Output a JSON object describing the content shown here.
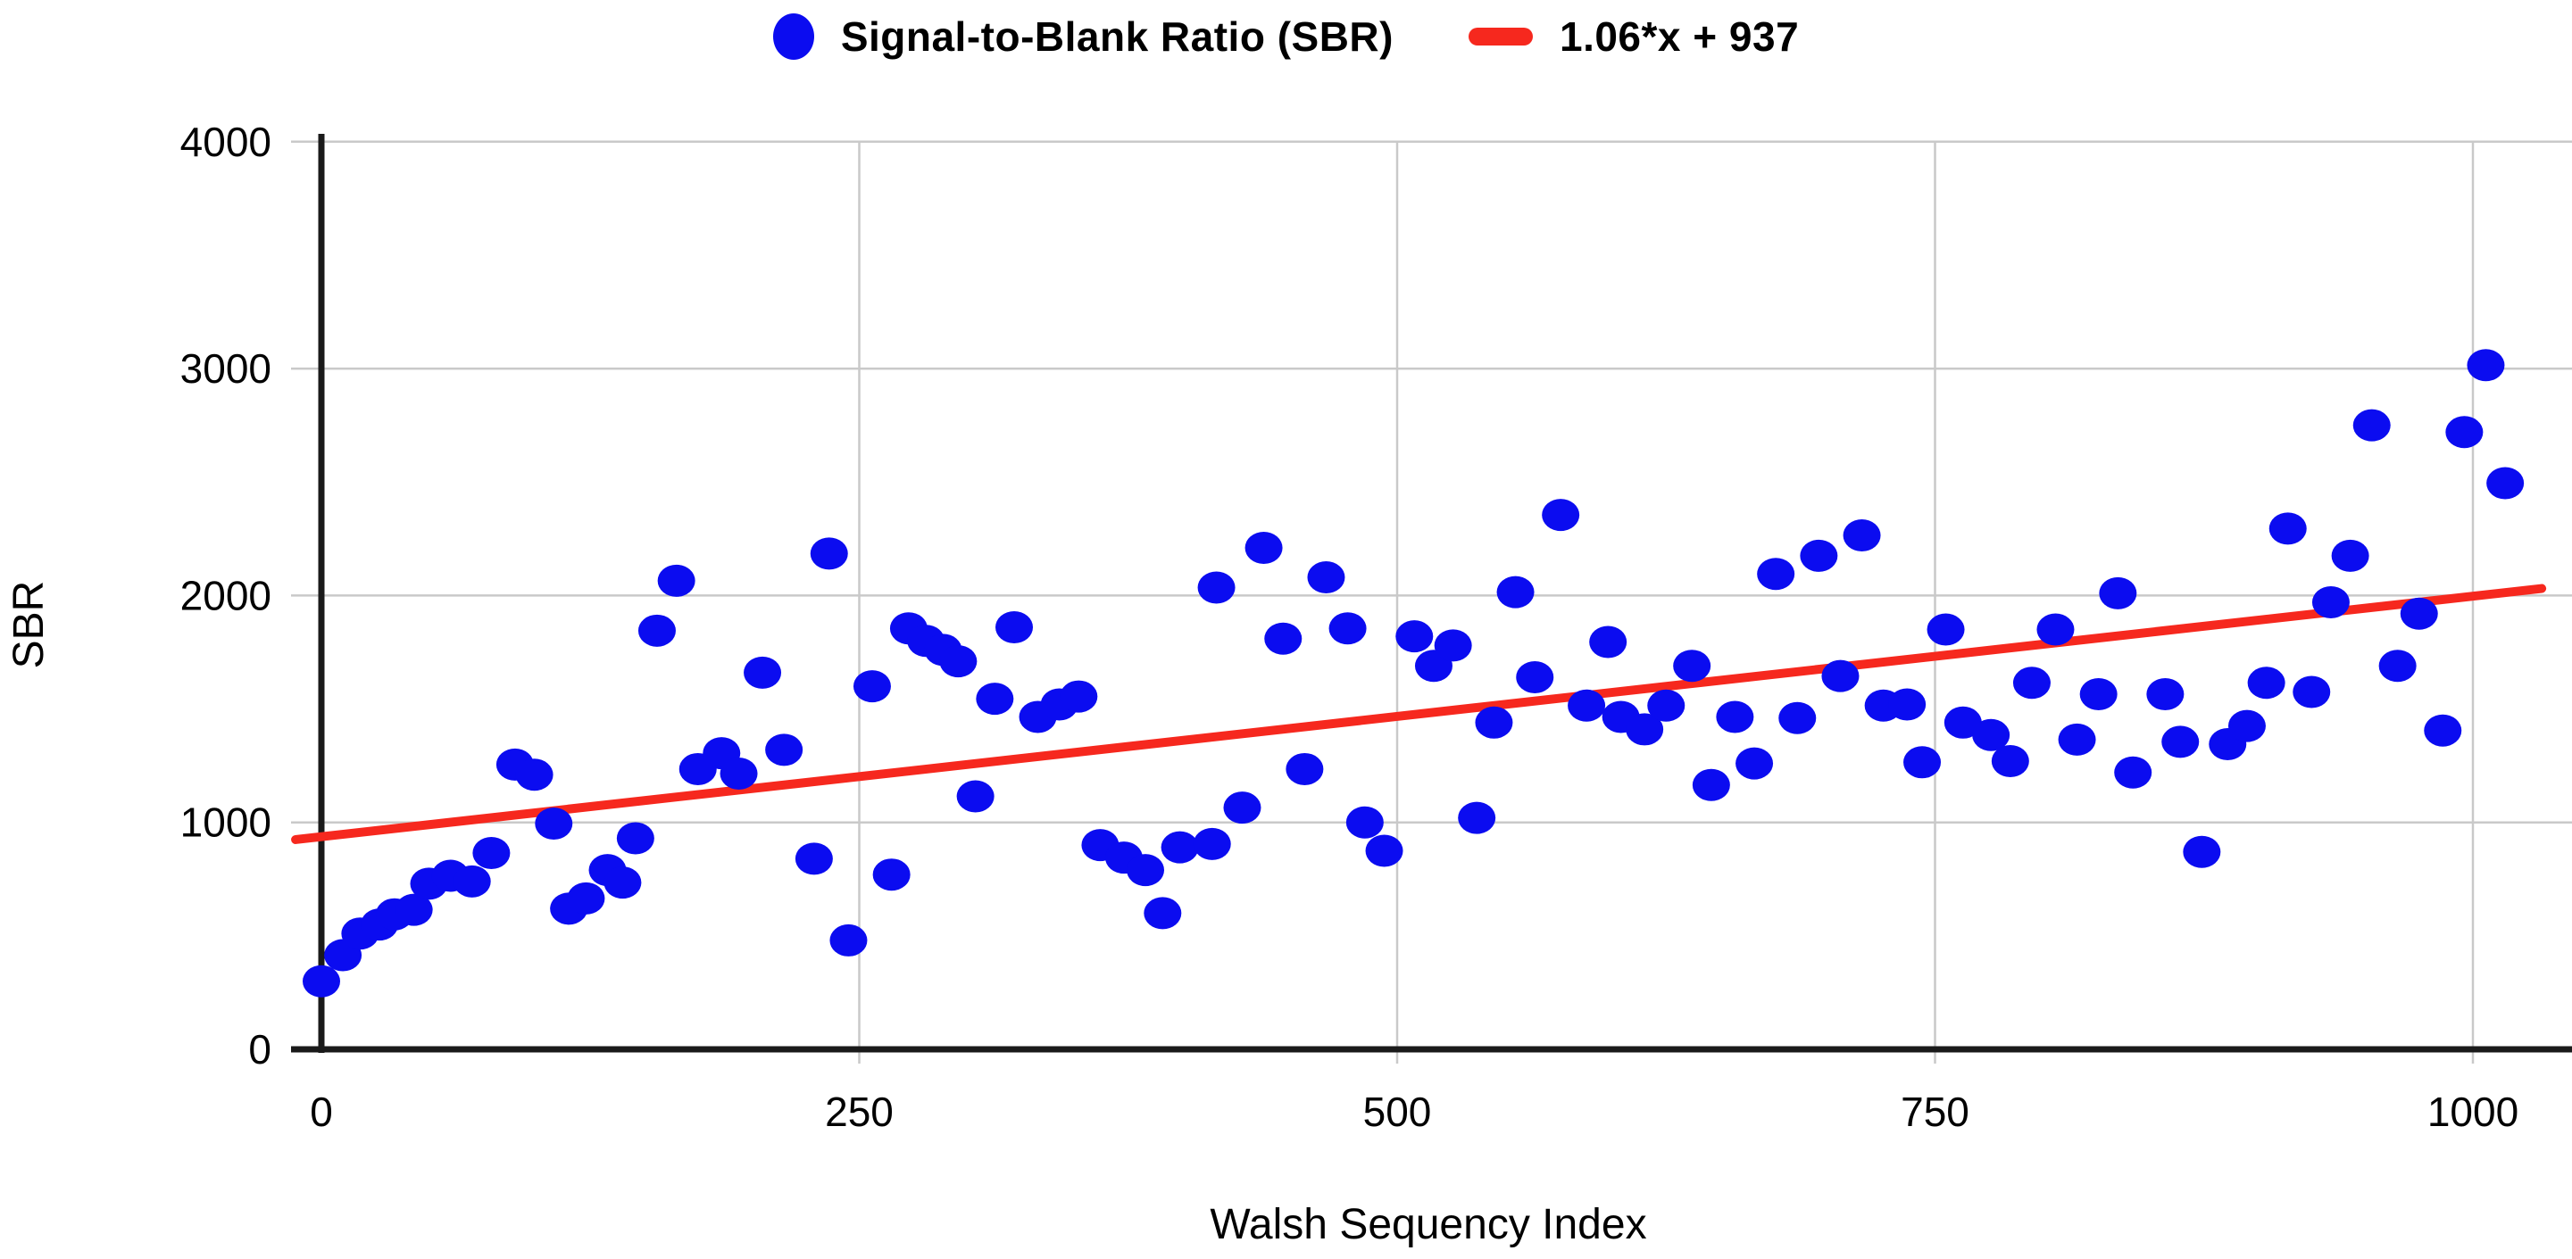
{
  "chart_data": {
    "type": "scatter",
    "title": "",
    "xlabel": "Walsh Sequency Index",
    "ylabel": "SBR",
    "xlim": [
      -15,
      1045
    ],
    "ylim": [
      0,
      4000
    ],
    "x_ticks": [
      0,
      250,
      500,
      750,
      1000
    ],
    "y_ticks": [
      0,
      1000,
      2000,
      3000,
      4000
    ],
    "grid": true,
    "legend": {
      "position": "top-center",
      "entries": [
        {
          "label": "Signal-to-Blank Ratio (SBR)",
          "marker": "circle",
          "color": "#0b0cf0"
        },
        {
          "label": "1.06*x + 937",
          "marker": "dash",
          "color": "#f6281e"
        }
      ]
    },
    "series": [
      {
        "name": "Signal-to-Blank Ratio (SBR)",
        "type": "scatter",
        "color": "#0b0cf0",
        "points": [
          [
            0,
            300
          ],
          [
            10,
            415
          ],
          [
            18,
            510
          ],
          [
            27,
            550
          ],
          [
            34,
            595
          ],
          [
            43,
            615
          ],
          [
            50,
            730
          ],
          [
            60,
            765
          ],
          [
            70,
            740
          ],
          [
            79,
            865
          ],
          [
            90,
            1255
          ],
          [
            99,
            1210
          ],
          [
            108,
            995
          ],
          [
            115,
            620
          ],
          [
            123,
            665
          ],
          [
            133,
            790
          ],
          [
            140,
            735
          ],
          [
            146,
            930
          ],
          [
            156,
            1845
          ],
          [
            165,
            2065
          ],
          [
            175,
            1235
          ],
          [
            186,
            1305
          ],
          [
            194,
            1215
          ],
          [
            205,
            1660
          ],
          [
            215,
            1320
          ],
          [
            229,
            840
          ],
          [
            236,
            2185
          ],
          [
            245,
            480
          ],
          [
            256,
            1600
          ],
          [
            265,
            770
          ],
          [
            273,
            1855
          ],
          [
            281,
            1800
          ],
          [
            289,
            1760
          ],
          [
            296,
            1710
          ],
          [
            304,
            1115
          ],
          [
            313,
            1545
          ],
          [
            322,
            1860
          ],
          [
            333,
            1465
          ],
          [
            343,
            1520
          ],
          [
            352,
            1555
          ],
          [
            362,
            900
          ],
          [
            373,
            845
          ],
          [
            383,
            790
          ],
          [
            391,
            600
          ],
          [
            399,
            890
          ],
          [
            414,
            905
          ],
          [
            416,
            2035
          ],
          [
            428,
            1065
          ],
          [
            438,
            2210
          ],
          [
            447,
            1810
          ],
          [
            457,
            1235
          ],
          [
            467,
            2080
          ],
          [
            477,
            1855
          ],
          [
            485,
            1000
          ],
          [
            494,
            875
          ],
          [
            508,
            1820
          ],
          [
            517,
            1690
          ],
          [
            526,
            1780
          ],
          [
            537,
            1020
          ],
          [
            545,
            1440
          ],
          [
            555,
            2015
          ],
          [
            564,
            1640
          ],
          [
            576,
            2355
          ],
          [
            588,
            1515
          ],
          [
            598,
            1795
          ],
          [
            604,
            1465
          ],
          [
            615,
            1410
          ],
          [
            625,
            1515
          ],
          [
            637,
            1690
          ],
          [
            646,
            1165
          ],
          [
            657,
            1465
          ],
          [
            666,
            1260
          ],
          [
            676,
            2095
          ],
          [
            686,
            1460
          ],
          [
            696,
            2175
          ],
          [
            706,
            1645
          ],
          [
            716,
            2265
          ],
          [
            726,
            1515
          ],
          [
            737,
            1520
          ],
          [
            744,
            1265
          ],
          [
            755,
            1850
          ],
          [
            763,
            1440
          ],
          [
            776,
            1385
          ],
          [
            785,
            1270
          ],
          [
            795,
            1615
          ],
          [
            806,
            1850
          ],
          [
            816,
            1365
          ],
          [
            826,
            1565
          ],
          [
            835,
            2010
          ],
          [
            842,
            1220
          ],
          [
            857,
            1565
          ],
          [
            864,
            1355
          ],
          [
            874,
            870
          ],
          [
            886,
            1345
          ],
          [
            895,
            1425
          ],
          [
            904,
            1615
          ],
          [
            914,
            2295
          ],
          [
            925,
            1575
          ],
          [
            934,
            1970
          ],
          [
            943,
            2175
          ],
          [
            953,
            2750
          ],
          [
            965,
            1690
          ],
          [
            975,
            1920
          ],
          [
            986,
            1405
          ],
          [
            996,
            2720
          ],
          [
            1006,
            3015
          ],
          [
            1015,
            2495
          ]
        ]
      },
      {
        "name": "1.06*x + 937",
        "type": "line",
        "color": "#f6281e",
        "equation": "1.06*x + 937",
        "slope": 1.06,
        "intercept": 937,
        "x_range": [
          -12,
          1032
        ]
      }
    ]
  },
  "colors": {
    "background": "#ffffff",
    "gridline": "#c9c9c9",
    "axis": "#1a1a1a",
    "text": "#000000",
    "point": "#0b0cf0",
    "trend": "#f6281e"
  }
}
